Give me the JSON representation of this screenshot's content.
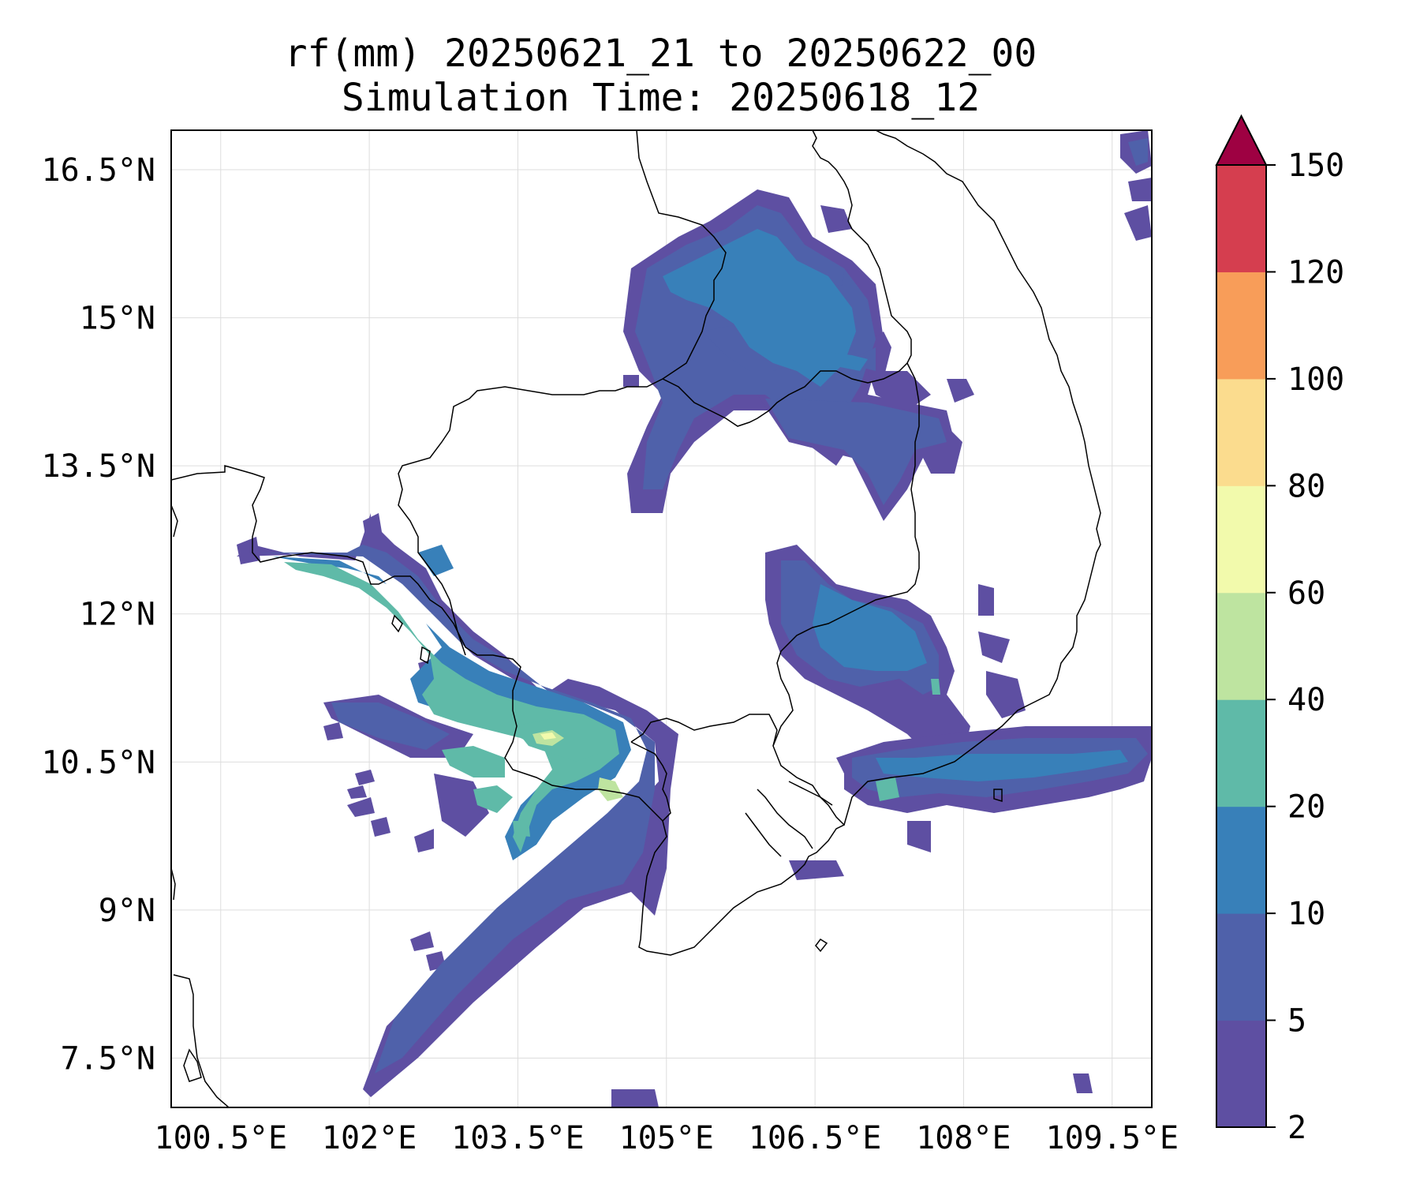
{
  "title": {
    "line1": "rf(mm) 20250621_21 to 20250622_00",
    "line2": "Simulation Time: 20250618_12"
  },
  "map": {
    "lon_range": [
      100.0,
      109.9
    ],
    "lat_range": [
      7.0,
      16.9
    ],
    "lon_ticks": [
      "100.5°E",
      "102°E",
      "103.5°E",
      "105°E",
      "106.5°E",
      "108°E",
      "109.5°E"
    ],
    "lon_tick_values": [
      100.5,
      102.0,
      103.5,
      105.0,
      106.5,
      108.0,
      109.5
    ],
    "lat_ticks": [
      "7.5°N",
      "9°N",
      "10.5°N",
      "12°N",
      "13.5°N",
      "15°N",
      "16.5°N"
    ],
    "lat_tick_values": [
      7.5,
      9.0,
      10.5,
      12.0,
      13.5,
      15.0,
      16.5
    ],
    "grid": true
  },
  "colorbar": {
    "levels": [
      2,
      5,
      10,
      20,
      40,
      60,
      80,
      100,
      120,
      150
    ],
    "labels": [
      "2",
      "5",
      "10",
      "20",
      "40",
      "60",
      "80",
      "100",
      "120",
      "150"
    ],
    "colors": [
      "#5e4fa2",
      "#4f61aa",
      "#3880b9",
      "#5fbaa8",
      "#bee4a0",
      "#f2faac",
      "#fbdc8e",
      "#f89d59",
      "#d53e4f",
      "#9e0142"
    ],
    "extend": "max"
  }
}
